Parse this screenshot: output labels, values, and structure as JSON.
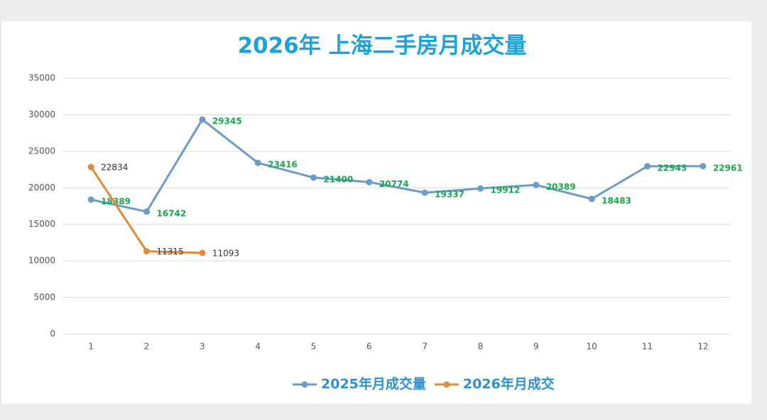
{
  "chart_data": {
    "type": "line",
    "title": "2026年 上海二手房月成交量",
    "categories": [
      "1",
      "2",
      "3",
      "4",
      "5",
      "6",
      "7",
      "8",
      "9",
      "10",
      "11",
      "12"
    ],
    "series": [
      {
        "name": "2025年月成交量",
        "color": "#6b9bc8",
        "label_color": "#1aa64a",
        "values": [
          18389,
          16742,
          29345,
          23416,
          21400,
          20774,
          19337,
          19912,
          20389,
          18483,
          22943,
          22961
        ]
      },
      {
        "name": "2026年月成交",
        "color": "#e08a3c",
        "label_color": "#333333",
        "values": [
          22834,
          11315,
          11093,
          null,
          null,
          null,
          null,
          null,
          null,
          null,
          null,
          null
        ]
      }
    ],
    "ylim": [
      0,
      35000
    ],
    "yticks": [
      0,
      5000,
      10000,
      15000,
      20000,
      25000,
      30000,
      35000
    ],
    "grid": true,
    "legend": "bottom"
  }
}
